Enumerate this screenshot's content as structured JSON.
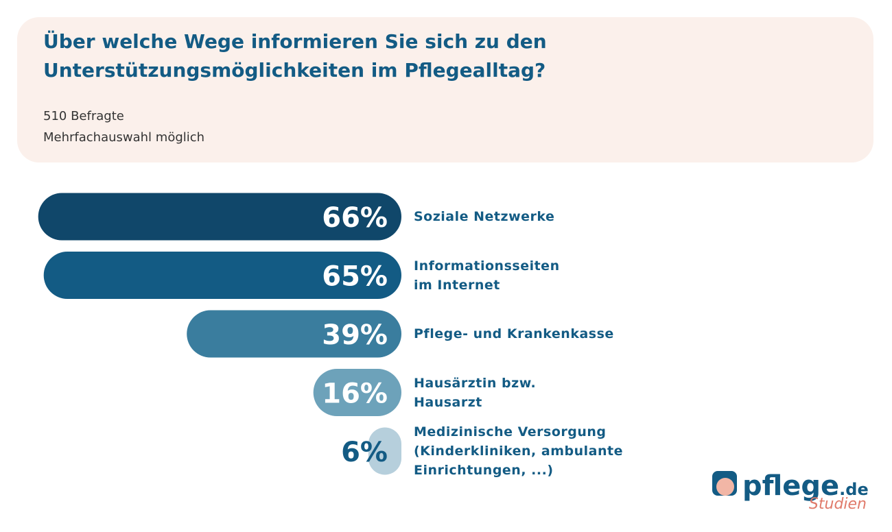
{
  "chart_data": {
    "type": "bar",
    "title": "Über welche Wege informieren Sie sich zu den Unterstützungsmöglichkeiten im Pflegealltag?",
    "subtitle": [
      "510 Befragte",
      "Mehrfachauswahl möglich"
    ],
    "categories": [
      "Soziale Netzwerke",
      "Informationsseiten\nim Internet",
      "Pflege- und Krankenkasse",
      "Hausärztin bzw.\nHausarzt",
      "Medizinische Versorgung\n(Kinderkliniken, ambulante\nEinrichtungen, ...)"
    ],
    "values": [
      66,
      65,
      39,
      16,
      6
    ],
    "value_labels": [
      "66%",
      "65%",
      "39%",
      "16%",
      "6%"
    ],
    "colors": [
      "#10476a",
      "#135b84",
      "#3a7d9e",
      "#6da2ba",
      "#b6cfdc"
    ],
    "label_colors": [
      "#ffffff",
      "#ffffff",
      "#ffffff",
      "#ffffff",
      "#135b84"
    ],
    "xlim": [
      0,
      100
    ]
  },
  "logo": {
    "brand": "pflege",
    "domain": ".de",
    "tagline": "Studien"
  }
}
